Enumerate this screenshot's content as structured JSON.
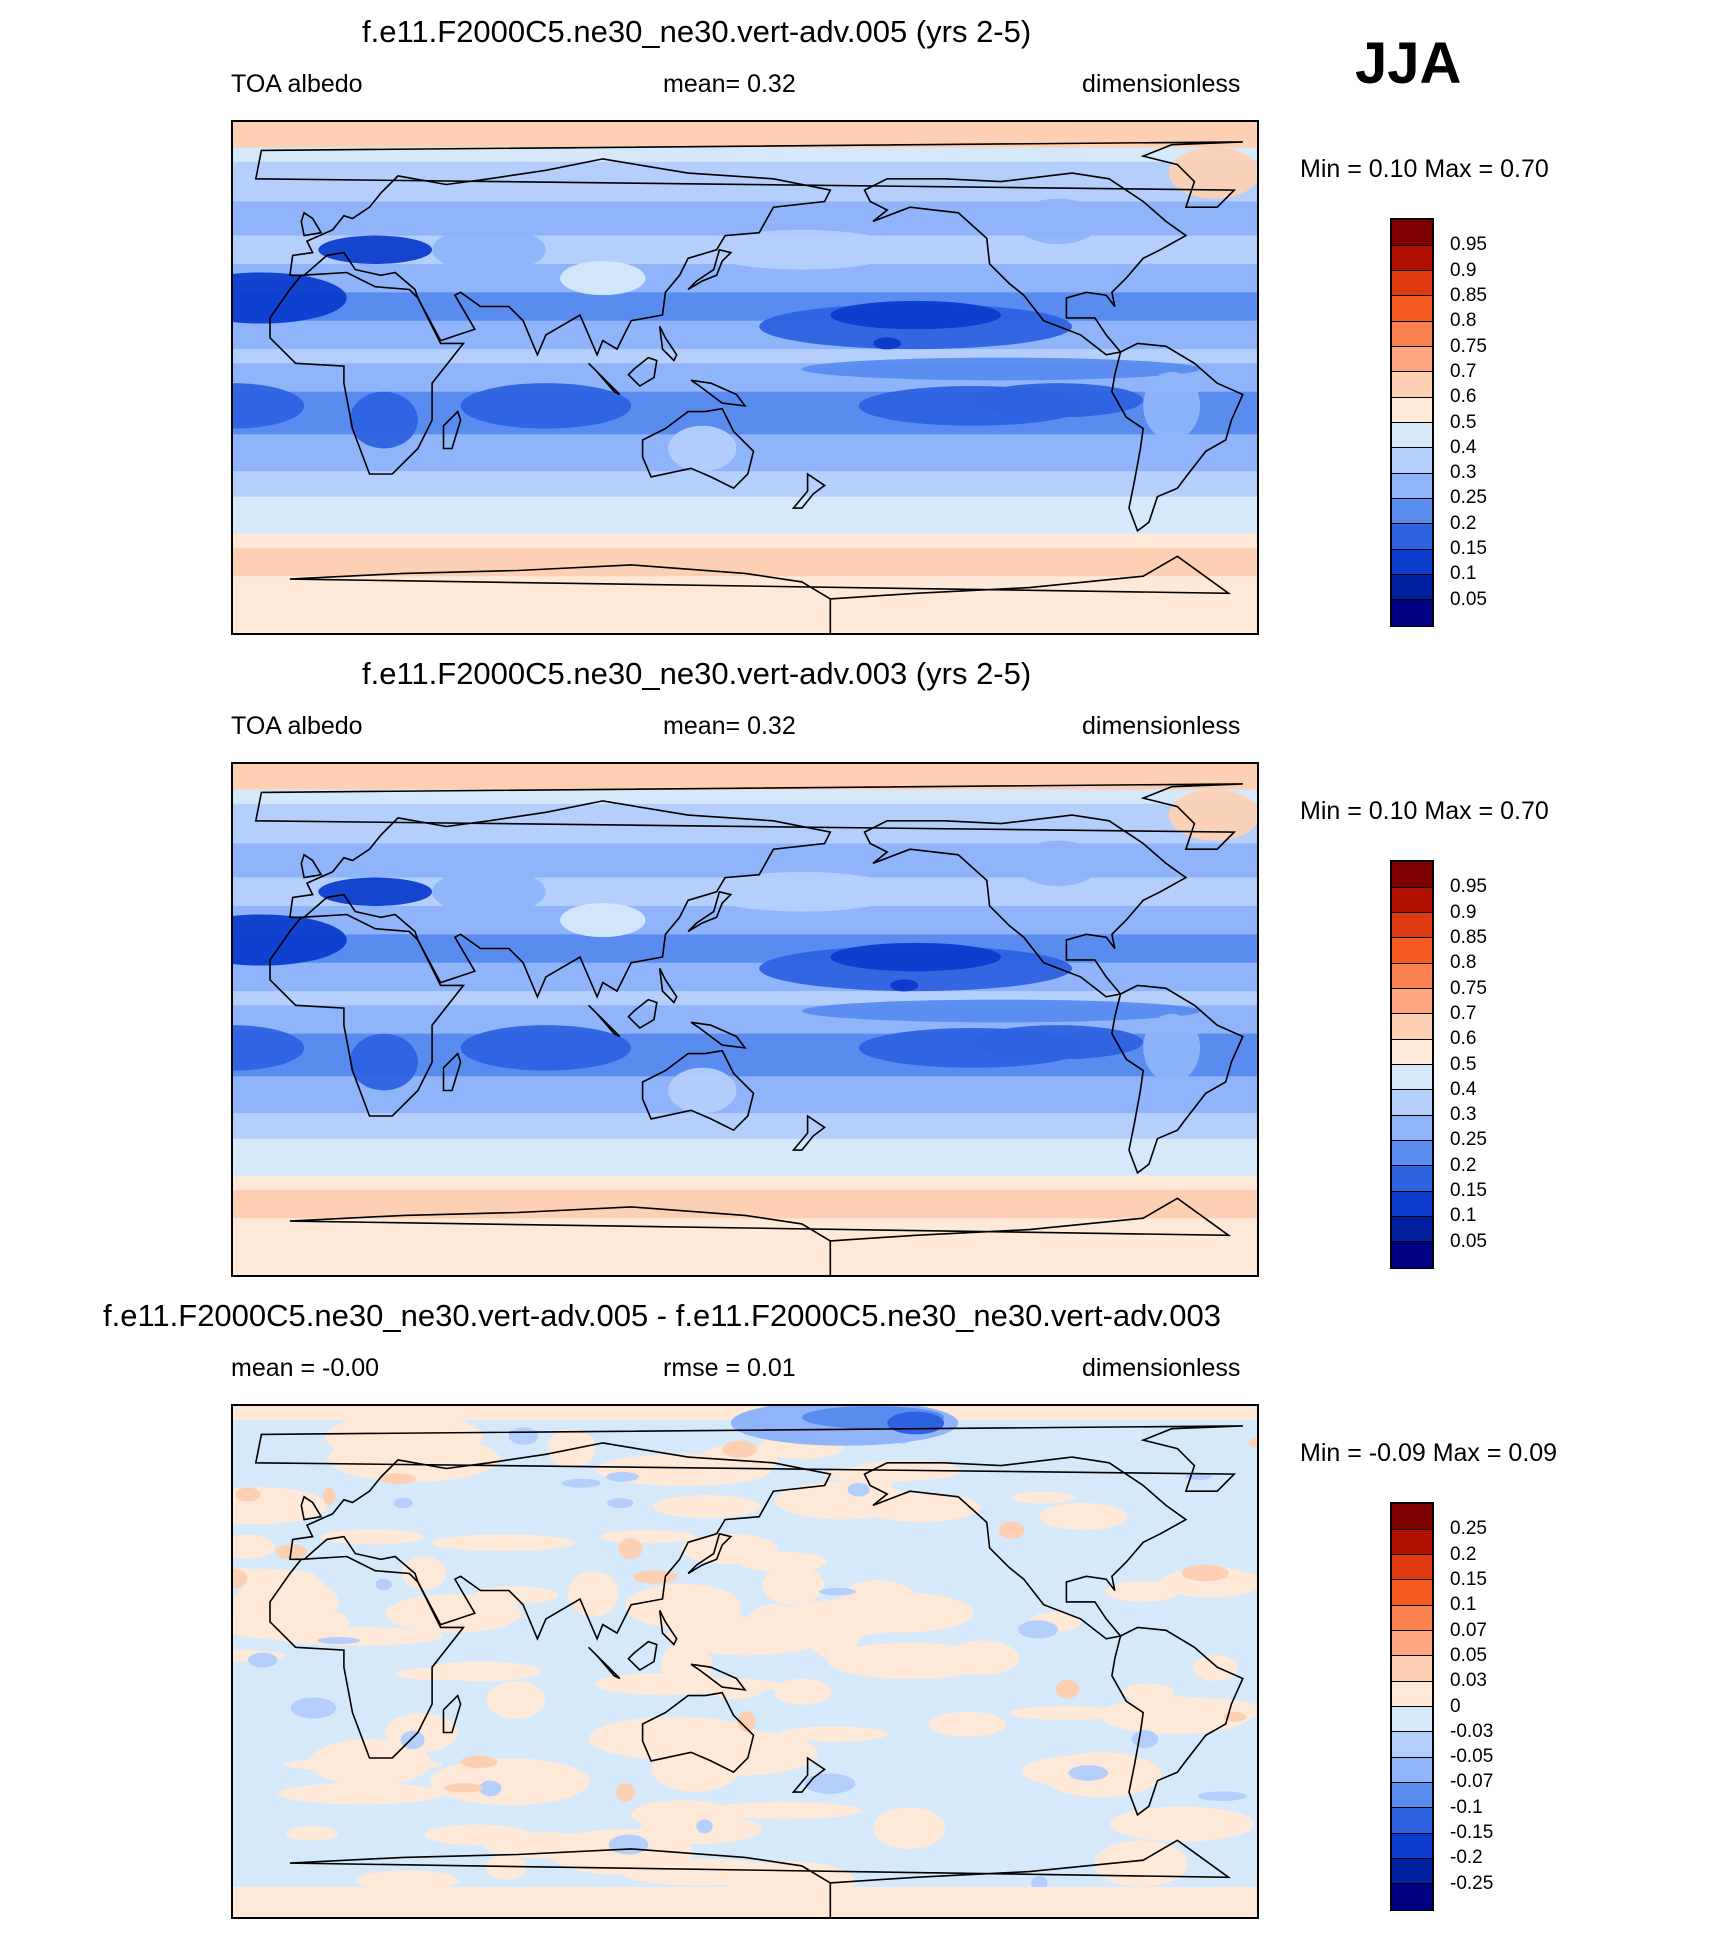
{
  "season": "JJA",
  "panels": [
    {
      "title": "f.e11.F2000C5.ne30_ne30.vert-adv.005 (yrs 2-5)",
      "left_label": "TOA albedo",
      "center_label": "mean=   0.32",
      "right_label": "dimensionless",
      "minmax": "Min =   0.10 Max =   0.70",
      "field_kind": "abs",
      "colorbar": {
        "levels": [
          "0.95",
          "0.9",
          "0.85",
          "0.8",
          "0.75",
          "0.7",
          "0.6",
          "0.5",
          "0.4",
          "0.3",
          "0.25",
          "0.2",
          "0.15",
          "0.1",
          "0.05"
        ],
        "colors": [
          "#7f0000",
          "#b01000",
          "#e03a10",
          "#f55a20",
          "#fb8050",
          "#fca57f",
          "#fdd0b4",
          "#fee8d8",
          "#d6e9fb",
          "#b4cffb",
          "#8fb4fa",
          "#5a8cf0",
          "#2f62e0",
          "#0d3ccc",
          "#0020a0",
          "#000080"
        ]
      }
    },
    {
      "title": "f.e11.F2000C5.ne30_ne30.vert-adv.003 (yrs 2-5)",
      "left_label": "TOA albedo",
      "center_label": "mean=   0.32",
      "right_label": "dimensionless",
      "minmax": "Min =   0.10 Max =   0.70",
      "field_kind": "abs",
      "colorbar": {
        "levels": [
          "0.95",
          "0.9",
          "0.85",
          "0.8",
          "0.75",
          "0.7",
          "0.6",
          "0.5",
          "0.4",
          "0.3",
          "0.25",
          "0.2",
          "0.15",
          "0.1",
          "0.05"
        ],
        "colors": [
          "#7f0000",
          "#b01000",
          "#e03a10",
          "#f55a20",
          "#fb8050",
          "#fca57f",
          "#fdd0b4",
          "#fee8d8",
          "#d6e9fb",
          "#b4cffb",
          "#8fb4fa",
          "#5a8cf0",
          "#2f62e0",
          "#0d3ccc",
          "#0020a0",
          "#000080"
        ]
      }
    },
    {
      "title": "f.e11.F2000C5.ne30_ne30.vert-adv.005 - f.e11.F2000C5.ne30_ne30.vert-adv.003",
      "left_label": "mean =  -0.00",
      "center_label": "rmse =   0.01",
      "right_label": "dimensionless",
      "minmax": "Min =  -0.09 Max =   0.09",
      "field_kind": "diff",
      "colorbar": {
        "levels": [
          "0.25",
          "0.2",
          "0.15",
          "0.1",
          "0.07",
          "0.05",
          "0.03",
          "0",
          "-0.03",
          "-0.05",
          "-0.07",
          "-0.1",
          "-0.15",
          "-0.2",
          "-0.25"
        ],
        "colors": [
          "#7f0000",
          "#b01000",
          "#e03a10",
          "#f55a20",
          "#fb8050",
          "#fca57f",
          "#fdd0b4",
          "#fee8d8",
          "#d6e9fb",
          "#b4cffb",
          "#8fb4fa",
          "#5a8cf0",
          "#2f62e0",
          "#0d3ccc",
          "#0020a0",
          "#000080"
        ]
      }
    }
  ]
}
